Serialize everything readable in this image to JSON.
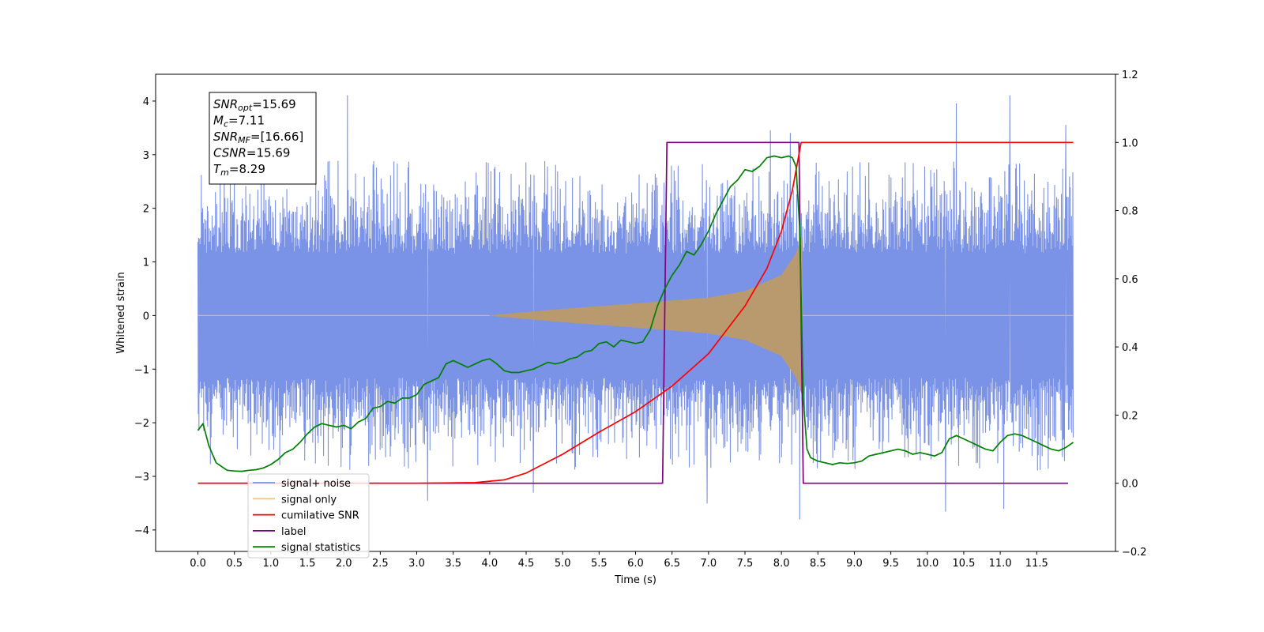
{
  "chart_data": {
    "type": "line",
    "title": "",
    "xlabel": "Time (s)",
    "ylabel_left": "Whitened strain",
    "ylabel_right": "",
    "xlim": [
      -0.58,
      12.58
    ],
    "ylim_left": [
      -4.4,
      4.5
    ],
    "ylim_right": [
      -0.2,
      1.2
    ],
    "x_ticks": [
      "0.0",
      "0.5",
      "1.0",
      "1.5",
      "2.0",
      "2.5",
      "3.0",
      "3.5",
      "4.0",
      "4.5",
      "5.0",
      "5.5",
      "6.0",
      "6.5",
      "7.0",
      "7.5",
      "8.0",
      "8.5",
      "9.0",
      "9.5",
      "10.0",
      "10.5",
      "11.0",
      "11.5"
    ],
    "y_ticks_left": [
      "4",
      "3",
      "2",
      "1",
      "0",
      "−1",
      "−2",
      "−3",
      "−4"
    ],
    "y_ticks_right": [
      "1.2",
      "1.0",
      "0.8",
      "0.6",
      "0.4",
      "0.2",
      "0.0",
      "−0.2"
    ],
    "grid": false,
    "info_box": {
      "lines": [
        {
          "var": "SNR",
          "sub": "opt",
          "value": "=15.69"
        },
        {
          "var": "M",
          "sub": "c",
          "value": "=7.11"
        },
        {
          "var": "SNR",
          "sub": "MF",
          "value": "=[16.66]"
        },
        {
          "var": "CSNR",
          "sub": "",
          "value": "=15.69"
        },
        {
          "var": "T",
          "sub": "m",
          "value": "=8.29"
        }
      ]
    },
    "legend": {
      "placement": "lower-left",
      "entries": [
        {
          "label": "signal+ noise",
          "color": "#7b93e6"
        },
        {
          "label": "signal only",
          "color": "#ffc56e"
        },
        {
          "label": "cumilative SNR",
          "color": "#ff0000"
        },
        {
          "label": "label",
          "color": "#800080"
        },
        {
          "label": "signal statistics",
          "color": "#008000"
        }
      ]
    },
    "series": [
      {
        "name": "signal+ noise",
        "axis": "left",
        "color": "#7b93e6",
        "x_range": [
          0.0,
          12.0
        ],
        "envelope_mean": [
          0,
          2.7,
          -2.7
        ],
        "outlier_peaks": [
          {
            "x": 2.05,
            "y": 4.1
          },
          {
            "x": 7.85,
            "y": 3.45
          },
          {
            "x": 8.12,
            "y": 3.4
          },
          {
            "x": 10.4,
            "y": 3.95
          },
          {
            "x": 11.13,
            "y": 4.1
          },
          {
            "x": 11.9,
            "y": 3.55
          },
          {
            "x": 6.98,
            "y": -3.5
          },
          {
            "x": 8.25,
            "y": -3.8
          },
          {
            "x": 10.25,
            "y": -3.65
          },
          {
            "x": 3.15,
            "y": -3.45
          },
          {
            "x": 4.6,
            "y": -3.3
          },
          {
            "x": 11.05,
            "y": -3.6
          }
        ]
      },
      {
        "name": "signal only",
        "axis": "left",
        "color": "#ffc56e",
        "chirp_start": 4.0,
        "chirp_end": 8.29,
        "amplitude_points": [
          [
            4.0,
            0.0
          ],
          [
            5.0,
            0.12
          ],
          [
            6.0,
            0.22
          ],
          [
            7.0,
            0.33
          ],
          [
            7.5,
            0.45
          ],
          [
            8.0,
            0.75
          ],
          [
            8.2,
            1.15
          ],
          [
            8.29,
            1.5
          ]
        ]
      },
      {
        "name": "cumilative SNR",
        "axis": "right",
        "color": "#ff0000",
        "x": [
          0.0,
          3.0,
          3.8,
          4.2,
          4.5,
          5.0,
          5.5,
          6.0,
          6.5,
          7.0,
          7.5,
          7.8,
          8.0,
          8.15,
          8.27,
          8.3,
          12.0
        ],
        "y": [
          0.0,
          0.0,
          0.002,
          0.01,
          0.03,
          0.085,
          0.15,
          0.21,
          0.285,
          0.38,
          0.52,
          0.63,
          0.74,
          0.86,
          1.0,
          1.0,
          1.0
        ]
      },
      {
        "name": "label",
        "axis": "right",
        "color": "#800080",
        "x": [
          0.0,
          6.37,
          6.43,
          8.24,
          8.3,
          11.93
        ],
        "y": [
          0.0,
          0.0,
          1.0,
          1.0,
          0.0,
          0.0
        ]
      },
      {
        "name": "signal statistics",
        "axis": "right",
        "color": "#008000",
        "x": [
          0.0,
          0.07,
          0.15,
          0.25,
          0.4,
          0.5,
          0.6,
          0.7,
          0.8,
          0.9,
          1.0,
          1.1,
          1.2,
          1.3,
          1.4,
          1.5,
          1.6,
          1.7,
          1.8,
          1.9,
          2.0,
          2.1,
          2.2,
          2.3,
          2.4,
          2.5,
          2.6,
          2.7,
          2.8,
          2.9,
          3.0,
          3.1,
          3.2,
          3.3,
          3.4,
          3.5,
          3.6,
          3.7,
          3.8,
          3.9,
          4.0,
          4.1,
          4.2,
          4.3,
          4.4,
          4.5,
          4.6,
          4.7,
          4.8,
          4.9,
          5.0,
          5.1,
          5.2,
          5.3,
          5.4,
          5.5,
          5.6,
          5.7,
          5.8,
          5.9,
          6.0,
          6.1,
          6.2,
          6.3,
          6.4,
          6.5,
          6.6,
          6.7,
          6.8,
          6.9,
          7.0,
          7.1,
          7.2,
          7.3,
          7.4,
          7.5,
          7.6,
          7.7,
          7.8,
          7.9,
          8.0,
          8.1,
          8.15,
          8.2,
          8.25,
          8.3,
          8.35,
          8.4,
          8.5,
          8.6,
          8.7,
          8.8,
          8.9,
          9.0,
          9.1,
          9.2,
          9.3,
          9.4,
          9.5,
          9.6,
          9.7,
          9.8,
          9.9,
          10.0,
          10.1,
          10.2,
          10.3,
          10.4,
          10.5,
          10.6,
          10.7,
          10.8,
          10.9,
          11.0,
          11.1,
          11.2,
          11.3,
          11.4,
          11.5,
          11.6,
          11.7,
          11.8,
          11.9,
          12.0
        ],
        "y": [
          0.155,
          0.175,
          0.11,
          0.06,
          0.038,
          0.036,
          0.035,
          0.038,
          0.04,
          0.045,
          0.055,
          0.07,
          0.09,
          0.1,
          0.12,
          0.145,
          0.165,
          0.175,
          0.17,
          0.165,
          0.17,
          0.16,
          0.18,
          0.19,
          0.22,
          0.225,
          0.24,
          0.235,
          0.25,
          0.25,
          0.26,
          0.29,
          0.3,
          0.31,
          0.35,
          0.36,
          0.35,
          0.34,
          0.35,
          0.36,
          0.365,
          0.35,
          0.33,
          0.325,
          0.325,
          0.33,
          0.335,
          0.345,
          0.355,
          0.35,
          0.355,
          0.365,
          0.37,
          0.385,
          0.39,
          0.41,
          0.415,
          0.4,
          0.42,
          0.415,
          0.41,
          0.415,
          0.45,
          0.52,
          0.57,
          0.61,
          0.64,
          0.68,
          0.67,
          0.7,
          0.74,
          0.79,
          0.83,
          0.87,
          0.89,
          0.92,
          0.915,
          0.93,
          0.955,
          0.96,
          0.955,
          0.96,
          0.955,
          0.93,
          0.75,
          0.25,
          0.1,
          0.075,
          0.065,
          0.06,
          0.055,
          0.06,
          0.058,
          0.06,
          0.065,
          0.08,
          0.085,
          0.09,
          0.095,
          0.1,
          0.095,
          0.085,
          0.09,
          0.085,
          0.08,
          0.09,
          0.13,
          0.14,
          0.13,
          0.12,
          0.11,
          0.1,
          0.095,
          0.12,
          0.14,
          0.145,
          0.14,
          0.13,
          0.12,
          0.11,
          0.1,
          0.095,
          0.105,
          0.12
        ]
      }
    ]
  }
}
